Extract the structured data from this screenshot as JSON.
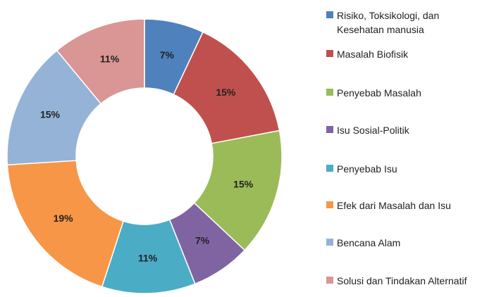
{
  "chart_data": {
    "type": "donut",
    "categories": [
      "Risiko, Toksikologi, dan Kesehatan manusia",
      "Masalah Biofisik",
      "Penyebab Masalah",
      "Isu Sosial-Politik",
      "Penyebab Isu",
      "Efek dari Masalah dan Isu",
      "Bencana Alam",
      "Solusi dan Tindakan Alternatif"
    ],
    "values": [
      7,
      15,
      15,
      7,
      11,
      19,
      15,
      11
    ],
    "value_labels": [
      "7%",
      "15%",
      "15%",
      "7%",
      "11%",
      "19%",
      "15%",
      "11%"
    ],
    "colors": [
      "#4f81bd",
      "#c0504d",
      "#9bbb59",
      "#8064a2",
      "#4bacc6",
      "#f79646",
      "#95b3d7",
      "#d99694"
    ],
    "legend": "right"
  }
}
